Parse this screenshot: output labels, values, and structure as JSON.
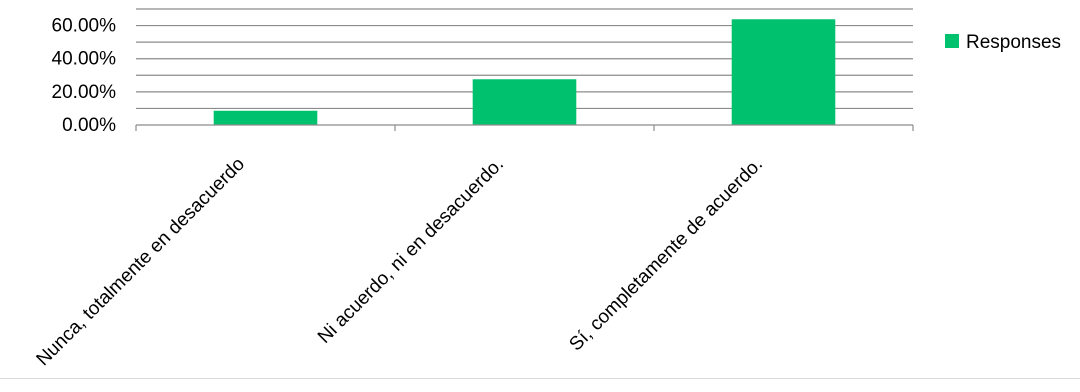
{
  "chart_data": {
    "type": "bar",
    "categories": [
      "Nunca, totalmente en desacuerdo",
      "Ni acuerdo, ni en desacuerdo.",
      "Sí, completamente de acuerdo."
    ],
    "series": [
      {
        "name": "Responses",
        "values": [
          8.6,
          27.6,
          63.8
        ],
        "color": "#00c16e"
      }
    ],
    "yticks": [
      "0.00%",
      "20.00%",
      "40.00%",
      "60.00%"
    ],
    "ylim": [
      0,
      70
    ],
    "grid": true,
    "legend": "right"
  }
}
